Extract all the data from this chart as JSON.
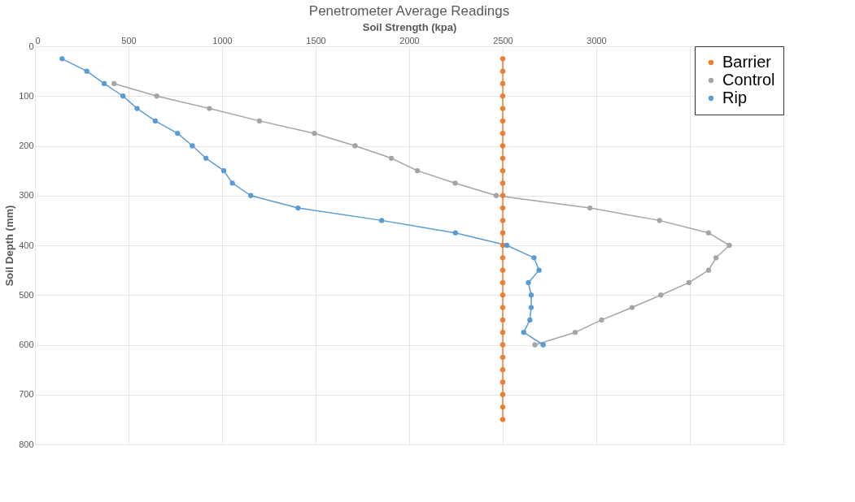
{
  "chart_data": {
    "type": "line",
    "title": "Penetrometer Average Readings",
    "xlabel": "Soil Strength (kpa)",
    "ylabel": "Soil Depth (mm)",
    "xlim": [
      0,
      4000
    ],
    "xticks": [
      0,
      500,
      1000,
      1500,
      2000,
      2500,
      3000,
      {
        "value": 3500,
        "label": null
      },
      {
        "value": 4000,
        "label": null
      }
    ],
    "ylim": [
      800,
      0
    ],
    "yticks": [
      0,
      100,
      200,
      300,
      400,
      500,
      600,
      700,
      800
    ],
    "grid": true,
    "legend": "top right",
    "marker": "circle",
    "line_style": "solid",
    "series": [
      {
        "name": "Barrier",
        "color": "#ed7d31",
        "x": [
          2500,
          2500,
          2500,
          2500,
          2500,
          2500,
          2500,
          2500,
          2500,
          2500,
          2500,
          2500,
          2500,
          2500,
          2500,
          2500,
          2500,
          2500,
          2500,
          2500,
          2500,
          2500,
          2500,
          2500,
          2500,
          2500,
          2500,
          2500,
          2500,
          2500
        ],
        "values": [
          25,
          50,
          75,
          100,
          125,
          150,
          175,
          200,
          225,
          250,
          275,
          300,
          325,
          350,
          375,
          400,
          425,
          450,
          475,
          500,
          525,
          550,
          575,
          600,
          625,
          650,
          675,
          700,
          725,
          750
        ]
      },
      {
        "name": "Control",
        "color": "#a5a5a5",
        "x": [
          null,
          null,
          423,
          651,
          932,
          1200,
          1494,
          1711,
          1905,
          2044,
          2246,
          2465,
          2966,
          3338,
          3600,
          3711,
          3640,
          3600,
          3495,
          3345,
          3191,
          3028,
          2887,
          2672
        ],
        "values": [
          null,
          null,
          75,
          100,
          125,
          150,
          175,
          200,
          225,
          250,
          275,
          300,
          325,
          350,
          375,
          400,
          425,
          450,
          475,
          500,
          525,
          550,
          575,
          600
        ]
      },
      {
        "name": "Rip",
        "color": "#5b9bd5",
        "x": [
          145,
          277,
          370,
          470,
          546,
          643,
          762,
          841,
          914,
          1009,
          1055,
          1153,
          1406,
          1853,
          2247,
          2522,
          2667,
          2694,
          2637,
          2652,
          2652,
          2645,
          2612,
          2716
        ],
        "values": [
          25,
          50,
          75,
          100,
          125,
          150,
          175,
          200,
          225,
          250,
          275,
          300,
          325,
          350,
          375,
          400,
          425,
          450,
          475,
          500,
          525,
          550,
          575,
          600
        ]
      }
    ]
  }
}
